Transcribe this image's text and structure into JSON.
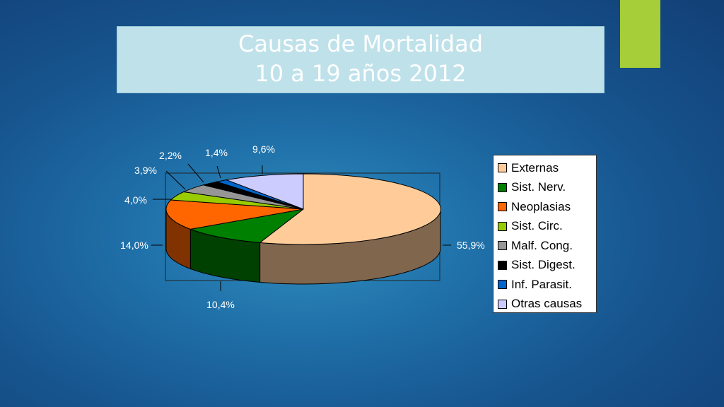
{
  "slide": {
    "title_line1": "Causas de Mortalidad",
    "title_line2": "10 a 19 años 2012",
    "accent_color": "#a6ce39"
  },
  "chart_data": {
    "type": "pie",
    "title": "",
    "slices": [
      {
        "name": "Externas",
        "value": 55.9,
        "label": "55,9%",
        "color": "#ffcc99"
      },
      {
        "name": "Sist. Nerv.",
        "value": 10.4,
        "label": "10,4%",
        "color": "#008000"
      },
      {
        "name": "Neoplasias",
        "value": 14.0,
        "label": "14,0%",
        "color": "#ff6600"
      },
      {
        "name": "Sist. Circ.",
        "value": 4.0,
        "label": "4,0%",
        "color": "#99cc00"
      },
      {
        "name": "Malf. Cong.",
        "value": 3.9,
        "label": "3,9%",
        "color": "#969696"
      },
      {
        "name": "Sist. Digest.",
        "value": 2.2,
        "label": "2,2%",
        "color": "#000000"
      },
      {
        "name": "Inf. Parasit.",
        "value": 1.4,
        "label": "1,4%",
        "color": "#0066cc"
      },
      {
        "name": "Otras causas",
        "value": 9.6,
        "label": "9,6%",
        "color": "#ccccff"
      }
    ],
    "legend_position": "right"
  }
}
